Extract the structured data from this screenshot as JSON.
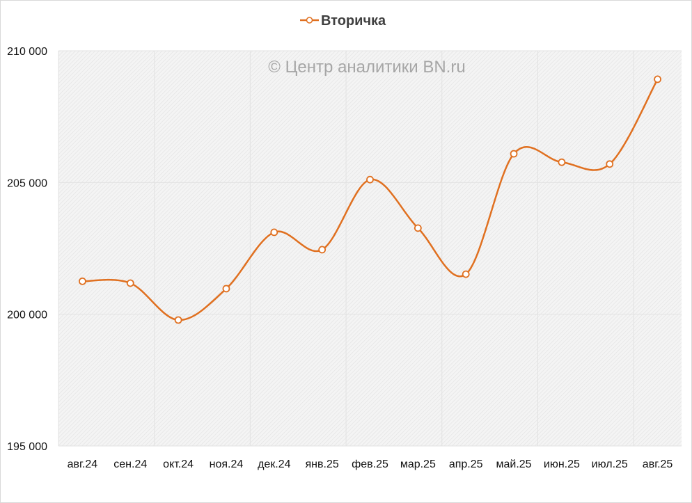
{
  "chart_data": {
    "type": "line",
    "title": "",
    "watermark": "© Центр аналитики BN.ru",
    "legend": {
      "position": "top",
      "entries": [
        "Вторичка"
      ]
    },
    "categories": [
      "авг.24",
      "сен.24",
      "окт.24",
      "ноя.24",
      "дек.24",
      "янв.25",
      "фев.25",
      "мар.25",
      "апр.25",
      "май.25",
      "июн.25",
      "июл.25",
      "авг.25"
    ],
    "series": [
      {
        "name": "Вторичка",
        "color": "#E07020",
        "smooth": true,
        "marker": "hollow-circle",
        "values": [
          201250,
          201180,
          199780,
          200970,
          203110,
          202450,
          205110,
          203270,
          201520,
          206090,
          205770,
          205700,
          208920
        ]
      }
    ],
    "ylim": [
      195000,
      210000
    ],
    "yticks": [
      195000,
      200000,
      205000,
      210000
    ],
    "ytick_labels": [
      "195 000",
      "200 000",
      "205 000",
      "210 000"
    ],
    "xlabel": "",
    "ylabel": "",
    "grid": true
  }
}
